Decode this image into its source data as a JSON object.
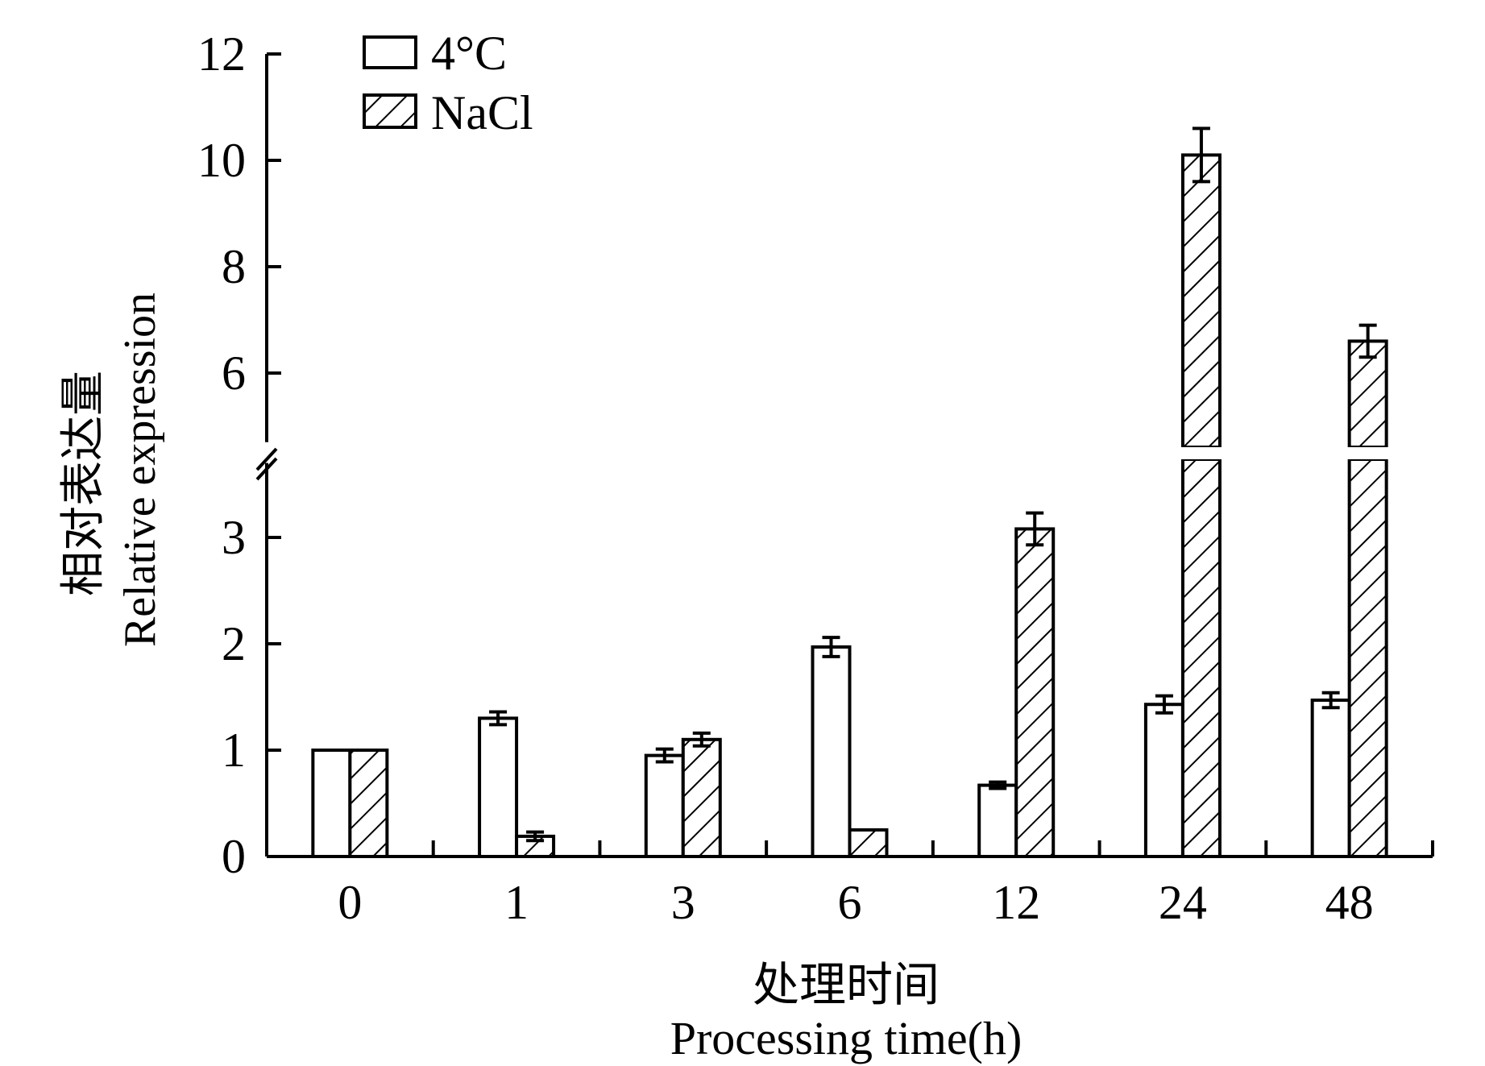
{
  "chart_data": {
    "type": "bar",
    "categories": [
      "0",
      "1",
      "3",
      "6",
      "12",
      "24",
      "48"
    ],
    "series": [
      {
        "name": "4°C",
        "pattern": "open",
        "values": [
          1.0,
          1.3,
          0.95,
          1.97,
          0.67,
          1.43,
          1.47
        ],
        "errors": [
          0.0,
          0.06,
          0.06,
          0.09,
          0.03,
          0.08,
          0.07
        ]
      },
      {
        "name": "NaCl",
        "pattern": "hatched",
        "values": [
          1.0,
          0.19,
          1.1,
          0.25,
          3.08,
          10.1,
          6.6
        ],
        "errors": [
          0.0,
          0.04,
          0.06,
          0.0,
          0.15,
          0.5,
          0.3
        ]
      }
    ],
    "y_axis": {
      "label_cn": "相对表达量",
      "label_en": "Relative expression",
      "lower_segment": {
        "range": [
          0,
          3.7
        ],
        "ticks": [
          0,
          1,
          2,
          3
        ]
      },
      "upper_segment": {
        "range": [
          4.7,
          12
        ],
        "ticks": [
          6,
          8,
          10,
          12
        ]
      },
      "broken": true
    },
    "x_axis": {
      "label_cn": "处理时间",
      "label_en": "Processing time(h)"
    },
    "legend_position": "top-left",
    "grid": false,
    "colors": {
      "stroke": "#000000",
      "fill": "#ffffff"
    }
  }
}
